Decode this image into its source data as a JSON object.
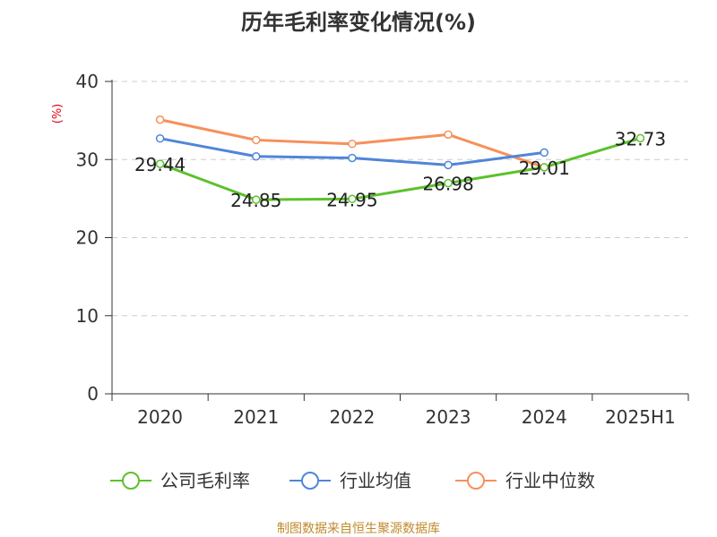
{
  "chart_data": {
    "type": "line",
    "title": "历年毛利率变化情况(%)",
    "ylabel": "(%)",
    "xlabel": "",
    "categories": [
      "2020",
      "2021",
      "2022",
      "2023",
      "2024",
      "2025H1"
    ],
    "ylim": [
      0,
      40
    ],
    "yticks": [
      0,
      10,
      20,
      30,
      40
    ],
    "grid": true,
    "legend_position": "bottom",
    "series": [
      {
        "name": "公司毛利率",
        "color": "#5cc12b",
        "values": [
          29.44,
          24.85,
          24.95,
          26.98,
          29.01,
          32.73
        ],
        "labels": [
          "29.44",
          "24.85",
          "24.95",
          "26.98",
          "29.01",
          "32.73"
        ]
      },
      {
        "name": "行业均值",
        "color": "#4f86d9",
        "values": [
          32.7,
          30.4,
          30.2,
          29.3,
          30.9,
          null
        ]
      },
      {
        "name": "行业中位数",
        "color": "#f7905a",
        "values": [
          35.1,
          32.5,
          32.0,
          33.2,
          29.0,
          null
        ]
      }
    ]
  },
  "source": "制图数据来自恒生聚源数据库",
  "colors": {
    "ylabel": "#e60012",
    "source": "#c08a2d",
    "grid": "#cccccc",
    "axis": "#333333"
  }
}
